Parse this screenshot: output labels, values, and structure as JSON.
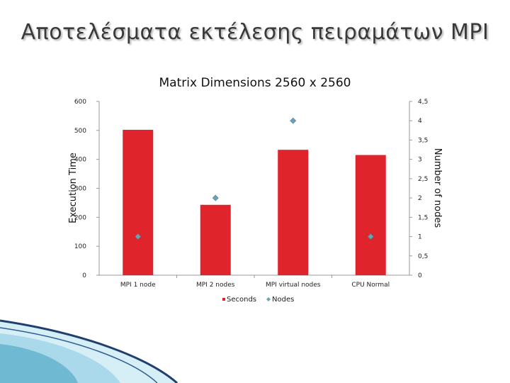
{
  "slide": {
    "title": "Αποτελέσματα εκτέλεσης πειραμάτων MPI"
  },
  "chart_data": {
    "type": "bar",
    "title": "Matrix Dimensions 2560 x 2560",
    "categories": [
      "MPI 1 node",
      "MPI 2 nodes",
      "MPI virtual nodes",
      "CPU Normal"
    ],
    "series": [
      {
        "name": "Seconds",
        "type": "bar",
        "axis": "left",
        "values": [
          502,
          243,
          433,
          415
        ],
        "color": "#e0242c"
      },
      {
        "name": "Nodes",
        "type": "scatter",
        "axis": "right",
        "values": [
          1,
          2,
          4,
          1
        ],
        "color": "#6aa3b8"
      }
    ],
    "ylabel": "Execution Time",
    "y2label": "Number of nodes",
    "ylim": [
      0,
      600
    ],
    "y2lim": [
      0,
      4.5
    ],
    "yticks": [
      "0",
      "100",
      "200",
      "300",
      "400",
      "500",
      "600"
    ],
    "y2ticks": [
      "0",
      "0,5",
      "1",
      "1,5",
      "2",
      "2,5",
      "3",
      "3,5",
      "4",
      "4,5"
    ],
    "legend": "bottom",
    "grid": false
  }
}
